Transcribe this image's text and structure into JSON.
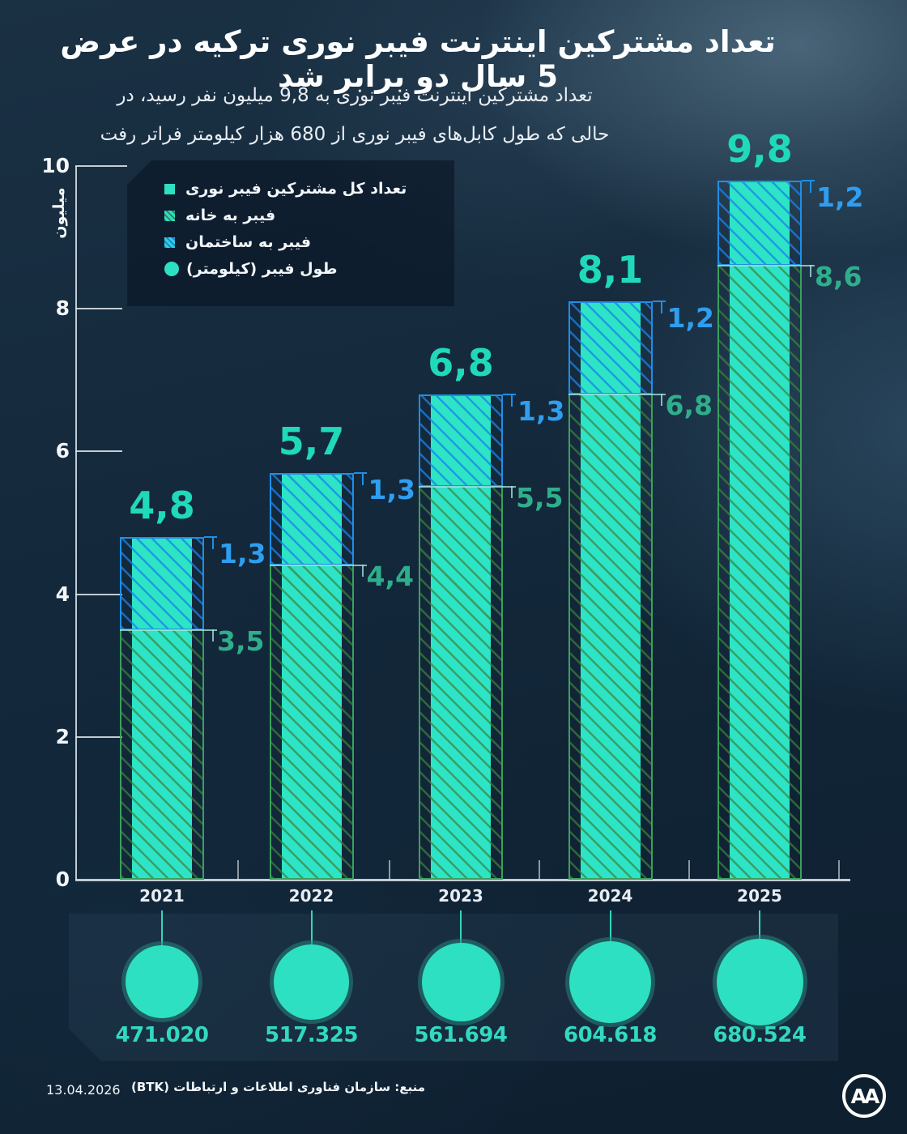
{
  "title": "تعداد مشترکین اینترنت فیبر نوری ترکیه در عرض 5 سال دو برابر شد",
  "subtitle": {
    "line1": "تعداد مشترکین اینترنت فیبر نوری به 9,8 میلیون نفر رسید، در",
    "line2": "حالی که طول کابل‌های فیبر نوری از 680 هزار کیلومتر فراتر رفت"
  },
  "legend": {
    "items": [
      {
        "label": "تعداد کل مشترکین فیبر نوری",
        "swatch": "solid-teal-square"
      },
      {
        "label": "فیبر به خانه",
        "swatch": "teal-square-green-hatch"
      },
      {
        "label": "فیبر به ساختمان",
        "swatch": "teal-square-blue-hatch"
      },
      {
        "label": "طول فیبر (کیلومتر)",
        "swatch": "teal-circle"
      }
    ]
  },
  "y_axis": {
    "unit": "میلیون",
    "ticks": [
      "0",
      "2",
      "4",
      "6",
      "8",
      "10"
    ],
    "tick_values": [
      0,
      2,
      4,
      6,
      8,
      10
    ]
  },
  "chart_data": {
    "type": "bar",
    "stacked": true,
    "categories": [
      "2021",
      "2022",
      "2023",
      "2024",
      "2025"
    ],
    "series": [
      {
        "name": "فیبر به خانه",
        "values": [
          3.5,
          4.4,
          5.5,
          6.8,
          8.6
        ],
        "labels": [
          "3,5",
          "4,4",
          "5,5",
          "6,8",
          "8,6"
        ]
      },
      {
        "name": "فیبر به ساختمان",
        "values": [
          1.3,
          1.3,
          1.3,
          1.2,
          1.2
        ],
        "labels": [
          "1,3",
          "1,3",
          "1,3",
          "1,2",
          "1,2"
        ]
      }
    ],
    "totals": {
      "values": [
        4.8,
        5.7,
        6.8,
        8.1,
        9.8
      ],
      "labels": [
        "4,8",
        "5,7",
        "6,8",
        "8,1",
        "9,8"
      ]
    },
    "fiber_length_km": {
      "name": "طول فیبر (کیلومتر)",
      "values": [
        "471.020",
        "517.325",
        "561.694",
        "604.618",
        "680.524"
      ]
    },
    "ylabel": "میلیون",
    "ylim": [
      0,
      10
    ],
    "grid": false,
    "legend_position": "top-right-of-plot"
  },
  "footer": {
    "date": "13.04.2026",
    "source": "منبع: سازمان فناوری اطلاعات و ارتباطات (BTK)",
    "logo": "AA"
  },
  "colors": {
    "background_dark": "#122537",
    "bar_fill": "#2de4c6",
    "fth_border": "#3aa05d",
    "ftb_border": "#1f8fe6",
    "total_label": "#1fd9ba",
    "ftb_label": "#2f9ef0",
    "fth_label": "#2fae8c",
    "circle": "#2ee0c2",
    "axis": "#e0e8ee"
  }
}
